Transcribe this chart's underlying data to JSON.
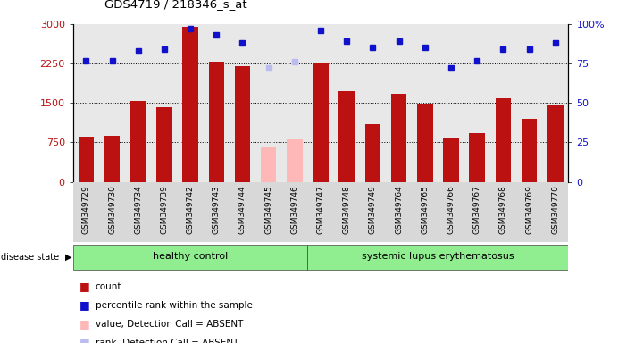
{
  "title": "GDS4719 / 218346_s_at",
  "samples": [
    "GSM349729",
    "GSM349730",
    "GSM349734",
    "GSM349739",
    "GSM349742",
    "GSM349743",
    "GSM349744",
    "GSM349745",
    "GSM349746",
    "GSM349747",
    "GSM349748",
    "GSM349749",
    "GSM349764",
    "GSM349765",
    "GSM349766",
    "GSM349767",
    "GSM349768",
    "GSM349769",
    "GSM349770"
  ],
  "bar_values": [
    850,
    870,
    1530,
    1420,
    2950,
    2280,
    2200,
    650,
    800,
    2270,
    1720,
    1100,
    1680,
    1490,
    820,
    920,
    1580,
    1200,
    1460
  ],
  "bar_absent": [
    false,
    false,
    false,
    false,
    false,
    false,
    false,
    true,
    true,
    false,
    false,
    false,
    false,
    false,
    false,
    false,
    false,
    false,
    false
  ],
  "dot_values": [
    77,
    77,
    83,
    84,
    97,
    93,
    88,
    72,
    76,
    96,
    89,
    85,
    89,
    85,
    72,
    77,
    84,
    84,
    88
  ],
  "dot_absent": [
    false,
    false,
    false,
    false,
    false,
    false,
    false,
    true,
    true,
    false,
    false,
    false,
    false,
    false,
    false,
    false,
    false,
    false,
    false
  ],
  "healthy_count": 9,
  "ylim_left": [
    0,
    3000
  ],
  "ylim_right": [
    0,
    100
  ],
  "yticks_left": [
    0,
    750,
    1500,
    2250,
    3000
  ],
  "yticks_right": [
    0,
    25,
    50,
    75,
    100
  ],
  "bar_color_normal": "#BB1111",
  "bar_color_absent": "#FFB8B8",
  "dot_color_normal": "#1111CC",
  "dot_color_absent": "#BBBBEE",
  "healthy_label": "healthy control",
  "lupus_label": "systemic lupus erythematosus",
  "disease_state_label": "disease state",
  "legend_items": [
    {
      "label": "count",
      "color": "#BB1111"
    },
    {
      "label": "percentile rank within the sample",
      "color": "#1111CC"
    },
    {
      "label": "value, Detection Call = ABSENT",
      "color": "#FFB8B8"
    },
    {
      "label": "rank, Detection Call = ABSENT",
      "color": "#BBBBEE"
    }
  ],
  "background_color": "#ffffff",
  "plot_bg_color": "#e8e8e8",
  "grid_color": "#000000",
  "grid_linestyle": ":",
  "grid_linewidth": 0.7
}
